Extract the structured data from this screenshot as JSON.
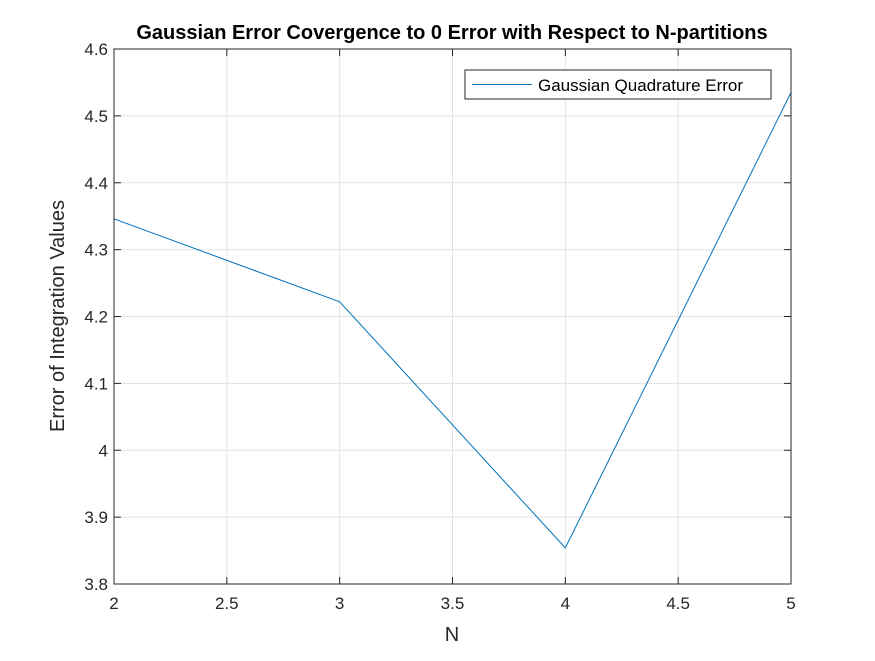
{
  "chart_data": {
    "type": "line",
    "title": "Gaussian Error Covergence to 0 Error with Respect to N-partitions",
    "xlabel": "N",
    "ylabel": "Error of Integration Values",
    "xlim": [
      2,
      5
    ],
    "ylim": [
      3.8,
      4.6
    ],
    "xticks": [
      "2",
      "2.5",
      "3",
      "3.5",
      "4",
      "4.5",
      "5"
    ],
    "yticks": [
      "3.8",
      "3.9",
      "4",
      "4.1",
      "4.2",
      "4.3",
      "4.4",
      "4.5",
      "4.6"
    ],
    "grid": true,
    "legend_position": "top-right",
    "series": [
      {
        "name": "Gaussian Quadrature Error",
        "color": "#0072BD",
        "x": [
          2,
          3,
          4,
          5
        ],
        "y": [
          4.346,
          4.222,
          3.854,
          4.535
        ]
      }
    ]
  }
}
